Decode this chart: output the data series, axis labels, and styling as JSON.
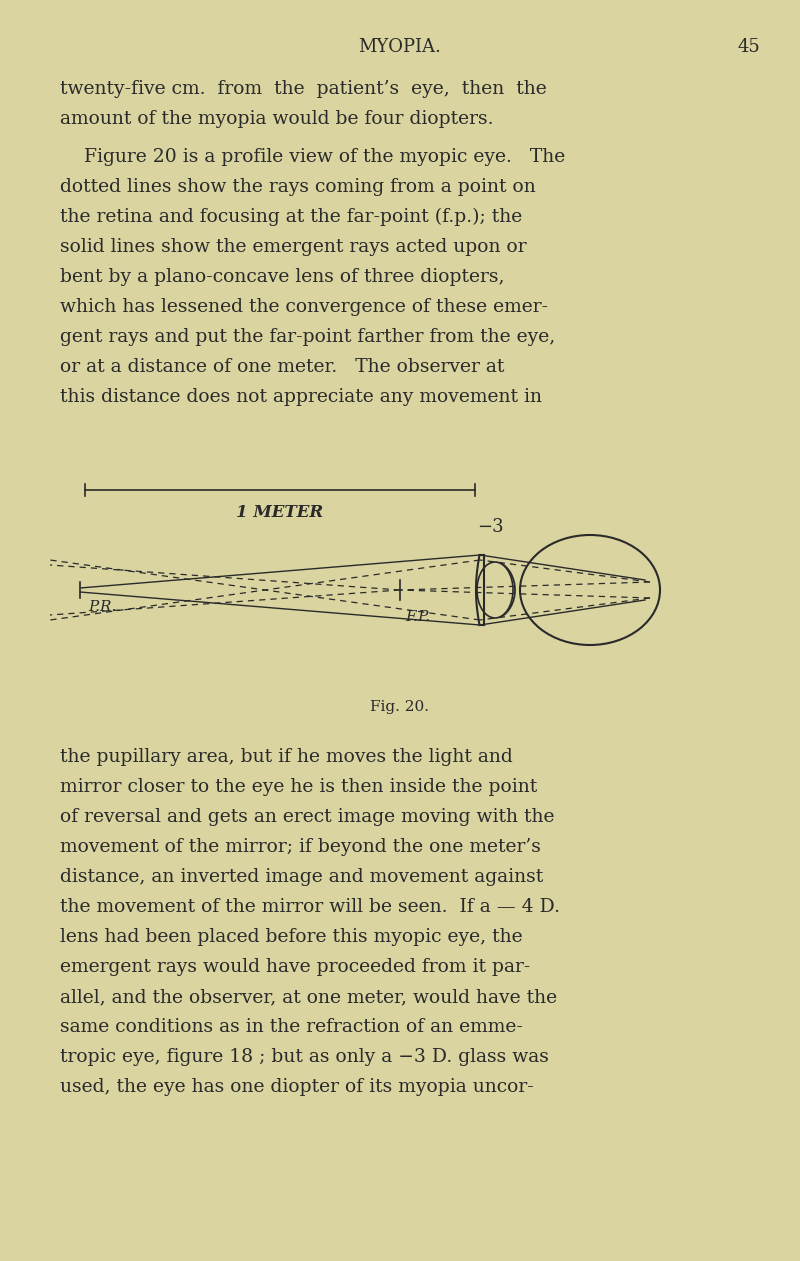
{
  "bg_color": "#d9d4a0",
  "text_color": "#2a2a2a",
  "page_title": "MYOPIA.",
  "page_number": "45",
  "fig_caption": "Fig. 20.",
  "fig_label_meter": "1 METER",
  "fig_label_lens": "−3",
  "fig_label_pr": "P.R.",
  "fig_label_fp": "F.P.",
  "para1": "twenty-five cm. from the patient’s eye, then the amount of the myopia would be four diopters.",
  "para2": "Figure 20 is a profile view of the myopic eye.  The dotted lines show the rays coming from a point on the retina and focusing at the far-point (f.p.); the solid lines show the emergent rays acted upon or bent by a plano-concave lens of three diopters, which has lessened the convergence of these emer- gent rays and put the far-point farther from the eye, or at a distance of one meter.  The observer at this distance does not appreciate any movement in",
  "para3": "the pupillary area, but if he moves the light and mirror closer to the eye he is then inside the point of reversal and gets an erect image moving with the movement of the mirror; if beyond the one meter’s distance, an inverted image and movement against the movement of the mirror will be seen.  If a — 4 D. lens had been placed before this myopic eye, the emergent rays would have proceeded from it par- allel, and the observer, at one meter, would have the same conditions as in the refraction of an emme- tropic eye, figure 18 ; but as only a −3 D. glass was used, the eye has one diopter of its myopia uncor-"
}
